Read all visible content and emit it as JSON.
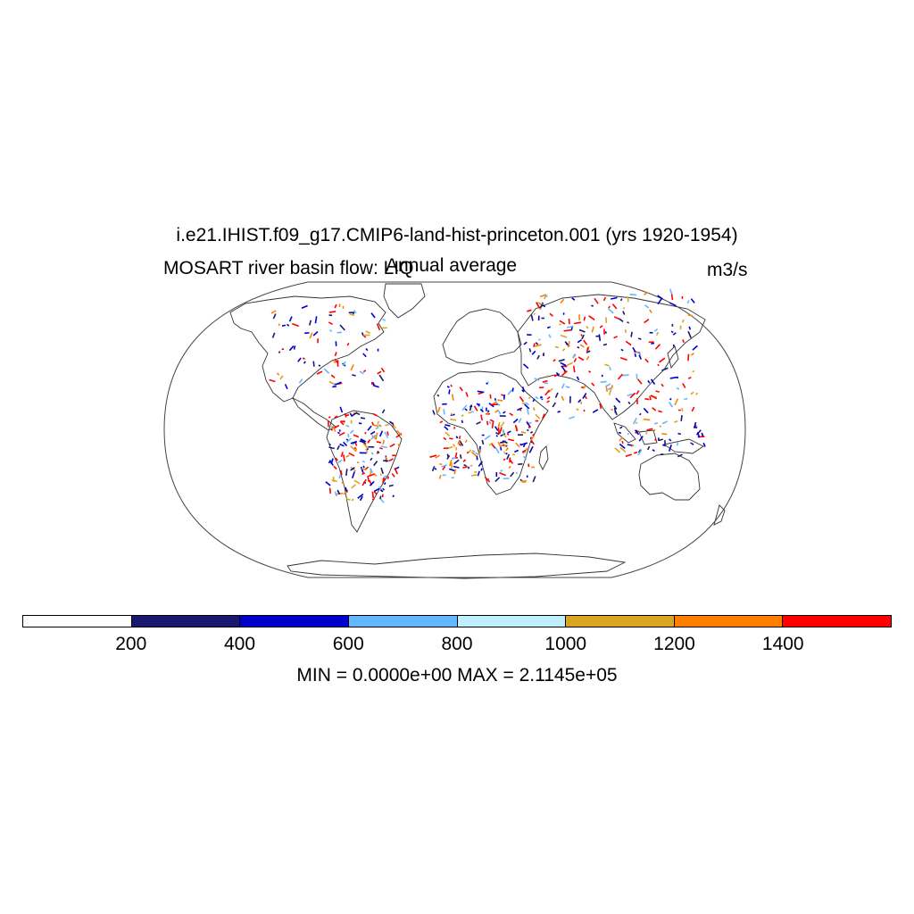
{
  "title": "i.e21.IHIST.f09_g17.CMIP6-land-hist-princeton.001 (yrs 1920-1954)",
  "left_subtitle": "MOSART river basin flow: LIQ",
  "center_subtitle": "Annual average",
  "units": "m3/s",
  "projection": "robinson",
  "colorbar": {
    "colors": [
      "#ffffff",
      "#191970",
      "#0000cd",
      "#63b8ff",
      "#bfefff",
      "#daa520",
      "#ff8000",
      "#ff0000"
    ],
    "tick_labels": [
      "200",
      "400",
      "600",
      "800",
      "1000",
      "1200",
      "1400"
    ],
    "levels": [
      200,
      400,
      600,
      800,
      1000,
      1200,
      1400
    ]
  },
  "stats_text": "MIN = 0.0000e+00 MAX = 2.1145e+05",
  "regions": [
    {
      "name": "North America",
      "dense": false
    },
    {
      "name": "Amazon basin",
      "dense": true
    },
    {
      "name": "Congo basin",
      "dense": true
    },
    {
      "name": "Asia",
      "dense": false
    },
    {
      "name": "Maritime Continent",
      "dense": true
    }
  ]
}
